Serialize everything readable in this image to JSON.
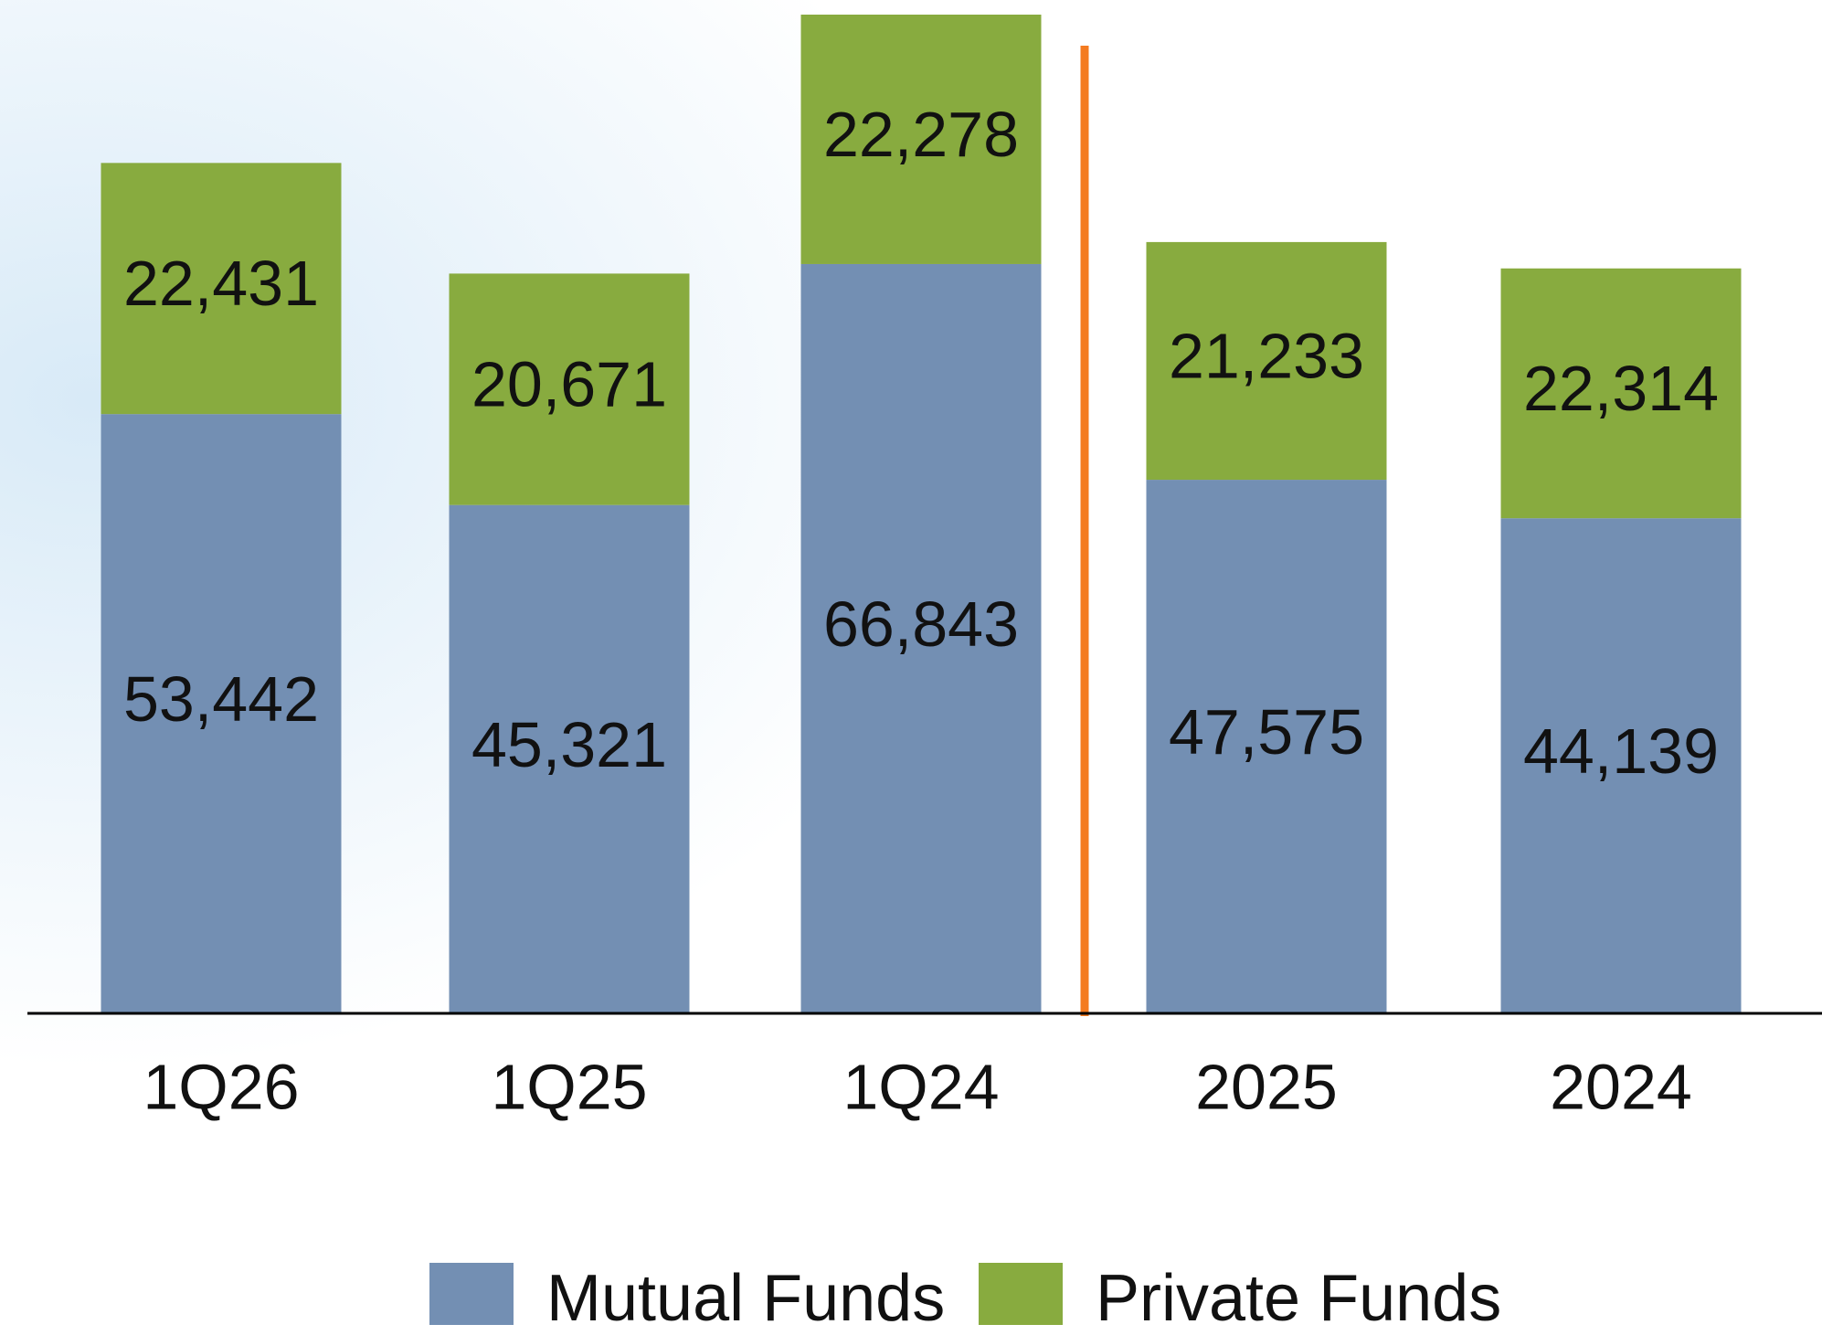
{
  "chart_data": {
    "type": "stacked_bar",
    "categories": [
      "1Q26",
      "1Q25",
      "1Q24",
      "2025",
      "2024"
    ],
    "series": [
      {
        "name": "Mutual Funds",
        "color": "#738fb3",
        "values": [
          53442,
          45321,
          66843,
          47575,
          44139
        ],
        "value_labels": [
          "53,442",
          "45,321",
          "66,843",
          "47,575",
          "44,139"
        ]
      },
      {
        "name": "Private Funds",
        "color": "#88ab3f",
        "values": [
          22431,
          20671,
          22278,
          21233,
          22314
        ],
        "value_labels": [
          "22,431",
          "20,671",
          "22,278",
          "21,233",
          "22,314"
        ]
      }
    ],
    "legend": "bottom"
  }
}
